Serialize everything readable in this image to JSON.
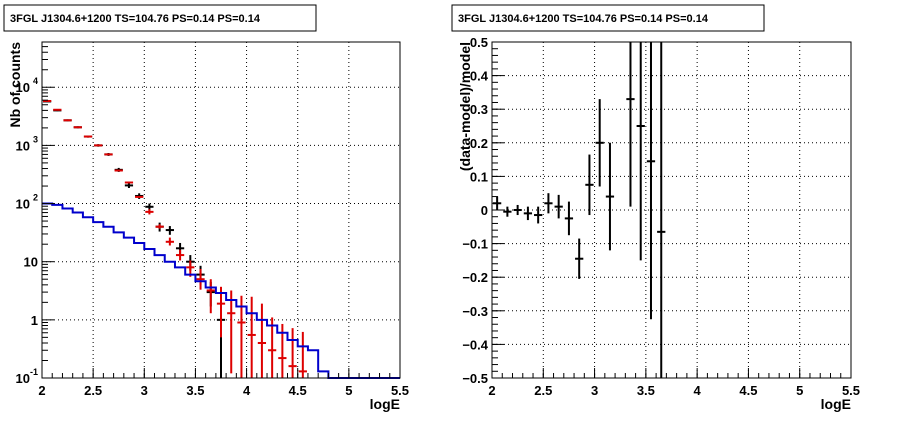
{
  "chart_data": [
    {
      "type": "line",
      "title": "3FGL J1304.6+1200 TS=104.76 PS=0.14 PS=0.14",
      "xlabel": "logE",
      "ylabel": "Nb of counts",
      "xlim": [
        2,
        5.5
      ],
      "ylim": [
        0.1,
        60000
      ],
      "yscale": "log",
      "grid": true,
      "x_ticks": [
        "2",
        "2.5",
        "3",
        "3.5",
        "4",
        "4.5",
        "5",
        "5.5"
      ],
      "y_ticks": [
        {
          "value": 0.1,
          "base": "10",
          "exp": "-1"
        },
        {
          "value": 1,
          "base": "1",
          "exp": ""
        },
        {
          "value": 10,
          "base": "10",
          "exp": ""
        },
        {
          "value": 100,
          "base": "10",
          "exp": "2"
        },
        {
          "value": 1000,
          "base": "10",
          "exp": "3"
        },
        {
          "value": 10000,
          "base": "10",
          "exp": "4"
        }
      ],
      "bin_width": 0.1,
      "series": [
        {
          "color": "#000000",
          "style": "errorbar",
          "points": [
            {
              "x": 2.05,
              "y": 5700,
              "lo": 5550,
              "hi": 5850
            },
            {
              "x": 2.15,
              "y": 4000,
              "lo": 3880,
              "hi": 4120
            },
            {
              "x": 2.25,
              "y": 2700,
              "lo": 2600,
              "hi": 2800
            },
            {
              "x": 2.35,
              "y": 2050,
              "lo": 1970,
              "hi": 2130
            },
            {
              "x": 2.45,
              "y": 1420,
              "lo": 1360,
              "hi": 1480
            },
            {
              "x": 2.55,
              "y": 1000,
              "lo": 950,
              "hi": 1050
            },
            {
              "x": 2.65,
              "y": 700,
              "lo": 660,
              "hi": 740
            },
            {
              "x": 2.75,
              "y": 380,
              "lo": 350,
              "hi": 410
            },
            {
              "x": 2.85,
              "y": 205,
              "lo": 185,
              "hi": 225
            },
            {
              "x": 2.95,
              "y": 135,
              "lo": 120,
              "hi": 150
            },
            {
              "x": 3.05,
              "y": 88,
              "lo": 76,
              "hi": 100
            },
            {
              "x": 3.15,
              "y": 40,
              "lo": 33,
              "hi": 47
            },
            {
              "x": 3.25,
              "y": 35,
              "lo": 29,
              "hi": 41
            },
            {
              "x": 3.35,
              "y": 17,
              "lo": 13,
              "hi": 21
            },
            {
              "x": 3.45,
              "y": 10,
              "lo": 7,
              "hi": 13
            },
            {
              "x": 3.55,
              "y": 6,
              "lo": 4,
              "hi": 8.5
            },
            {
              "x": 3.65,
              "y": 3,
              "lo": 1.7,
              "hi": 4.5
            },
            {
              "x": 3.75,
              "y": 1,
              "lo": 0.1,
              "hi": 2.3
            }
          ]
        },
        {
          "color": "#dd0000",
          "style": "errorbar",
          "points": [
            {
              "x": 2.05,
              "y": 5800,
              "lo": 5800,
              "hi": 5800
            },
            {
              "x": 2.15,
              "y": 4100,
              "lo": 4100,
              "hi": 4100
            },
            {
              "x": 2.25,
              "y": 2700,
              "lo": 2700,
              "hi": 2700
            },
            {
              "x": 2.35,
              "y": 2050,
              "lo": 2050,
              "hi": 2050
            },
            {
              "x": 2.45,
              "y": 1420,
              "lo": 1420,
              "hi": 1420
            },
            {
              "x": 2.55,
              "y": 1000,
              "lo": 1000,
              "hi": 1000
            },
            {
              "x": 2.65,
              "y": 700,
              "lo": 700,
              "hi": 700
            },
            {
              "x": 2.75,
              "y": 370,
              "lo": 370,
              "hi": 370
            },
            {
              "x": 2.85,
              "y": 230,
              "lo": 230,
              "hi": 230
            },
            {
              "x": 2.95,
              "y": 130,
              "lo": 126,
              "hi": 134
            },
            {
              "x": 3.05,
              "y": 72,
              "lo": 65,
              "hi": 80
            },
            {
              "x": 3.15,
              "y": 40,
              "lo": 37,
              "hi": 44
            },
            {
              "x": 3.25,
              "y": 22,
              "lo": 19,
              "hi": 26
            },
            {
              "x": 3.35,
              "y": 13,
              "lo": 10.5,
              "hi": 16
            },
            {
              "x": 3.45,
              "y": 8,
              "lo": 5.5,
              "hi": 10.5
            },
            {
              "x": 3.55,
              "y": 5,
              "lo": 3.3,
              "hi": 7.5
            },
            {
              "x": 3.65,
              "y": 3.2,
              "lo": 1.3,
              "hi": 5
            },
            {
              "x": 3.75,
              "y": 1.9,
              "lo": 0.5,
              "hi": 3.7
            },
            {
              "x": 3.85,
              "y": 1.3,
              "lo": 0.12,
              "hi": 3.2
            },
            {
              "x": 3.95,
              "y": 0.9,
              "lo": 0.1,
              "hi": 2.6
            },
            {
              "x": 4.05,
              "y": 0.55,
              "lo": 0.1,
              "hi": 2.5
            },
            {
              "x": 4.15,
              "y": 0.4,
              "lo": 0.1,
              "hi": 1.9
            },
            {
              "x": 4.25,
              "y": 0.3,
              "lo": 0.1,
              "hi": 1.1
            },
            {
              "x": 4.35,
              "y": 0.22,
              "lo": 0.1,
              "hi": 0.85
            },
            {
              "x": 4.45,
              "y": 0.16,
              "lo": 0.1,
              "hi": 0.72
            },
            {
              "x": 4.55,
              "y": 0.13,
              "lo": 0.1,
              "hi": 0.62
            }
          ]
        },
        {
          "color": "#0000cc",
          "style": "step",
          "values": [
            100,
            95,
            82,
            70,
            58,
            48,
            40,
            32,
            26,
            21,
            16.5,
            13,
            10,
            8,
            6,
            4.6,
            3.6,
            2.9,
            2.2,
            1.7,
            1.3,
            1.0,
            0.8,
            0.6,
            0.45,
            0.35,
            0.3,
            0.13,
            0.1,
            0.1,
            0.1,
            0.1,
            0.1,
            0.1,
            0.1
          ]
        }
      ]
    },
    {
      "type": "scatter",
      "title": "3FGL J1304.6+1200 TS=104.76 PS=0.14 PS=0.14",
      "xlabel": "logE",
      "ylabel": "(data-model)/model",
      "xlim": [
        2,
        5.5
      ],
      "ylim": [
        -0.5,
        0.5
      ],
      "grid": true,
      "x_ticks": [
        "2",
        "2.5",
        "3",
        "3.5",
        "4",
        "4.5",
        "5",
        "5.5"
      ],
      "y_ticks": [
        {
          "value": -0.5,
          "label": "−0.5"
        },
        {
          "value": -0.4,
          "label": "−0.4"
        },
        {
          "value": -0.3,
          "label": "−0.3"
        },
        {
          "value": -0.2,
          "label": "−0.2"
        },
        {
          "value": -0.1,
          "label": "−0.1"
        },
        {
          "value": 0,
          "label": "0"
        },
        {
          "value": 0.1,
          "label": "0.1"
        },
        {
          "value": 0.2,
          "label": "0.2"
        },
        {
          "value": 0.3,
          "label": "0.3"
        },
        {
          "value": 0.4,
          "label": "0.4"
        },
        {
          "value": 0.5,
          "label": "0.5"
        }
      ],
      "bin_width": 0.1,
      "series": [
        {
          "color": "#000000",
          "style": "errorbar",
          "points": [
            {
              "x": 2.05,
              "y": 0.02,
              "err": 0.02
            },
            {
              "x": 2.15,
              "y": -0.005,
              "err": 0.015
            },
            {
              "x": 2.25,
              "y": 0.0,
              "err": 0.015
            },
            {
              "x": 2.35,
              "y": -0.01,
              "err": 0.02
            },
            {
              "x": 2.45,
              "y": -0.015,
              "err": 0.025
            },
            {
              "x": 2.55,
              "y": 0.02,
              "err": 0.03
            },
            {
              "x": 2.65,
              "y": 0.01,
              "err": 0.035
            },
            {
              "x": 2.75,
              "y": -0.025,
              "err": 0.05
            },
            {
              "x": 2.85,
              "y": -0.145,
              "err": 0.06
            },
            {
              "x": 2.95,
              "y": 0.075,
              "err": 0.09
            },
            {
              "x": 3.05,
              "y": 0.2,
              "err": 0.13
            },
            {
              "x": 3.15,
              "y": 0.04,
              "err": 0.16
            },
            {
              "x": 3.35,
              "y": 0.33,
              "err": 0.32
            },
            {
              "x": 3.45,
              "y": 0.25,
              "err": 0.4
            },
            {
              "x": 3.55,
              "y": 0.145,
              "err": 0.47
            },
            {
              "x": 3.65,
              "y": -0.065,
              "err": 0.6
            }
          ]
        }
      ]
    }
  ]
}
